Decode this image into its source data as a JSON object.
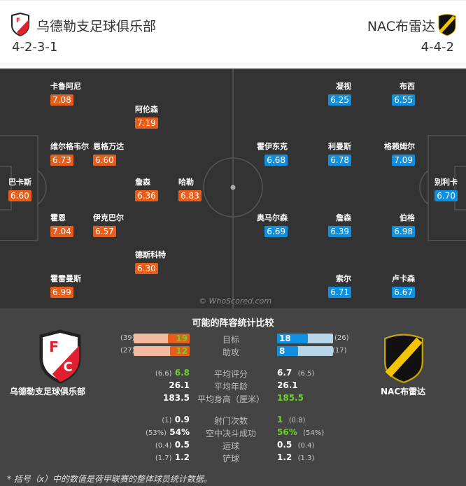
{
  "home": {
    "name": "乌德勒支足球俱乐部",
    "formation": "4-2-3-1",
    "color": "#e85d1a"
  },
  "away": {
    "name": "NAC布雷达",
    "formation": "4-4-2",
    "color": "#0f8fe0"
  },
  "home_players": [
    {
      "name": "卡鲁阿尼",
      "rating": "7.08"
    },
    {
      "name": "阿伦森",
      "rating": "7.19"
    },
    {
      "name": "维尔格韦尔",
      "rating": "6.73"
    },
    {
      "name": "恩格万达",
      "rating": "6.60"
    },
    {
      "name": "巴卡斯",
      "rating": "6.60"
    },
    {
      "name": "詹森",
      "rating": "6.36"
    },
    {
      "name": "哈勒",
      "rating": "6.83"
    },
    {
      "name": "霍恩",
      "rating": "7.04"
    },
    {
      "name": "伊克巴尔",
      "rating": "6.57"
    },
    {
      "name": "德斯科特",
      "rating": "6.30"
    },
    {
      "name": "霍雷曼斯",
      "rating": "6.99"
    }
  ],
  "away_players": [
    {
      "name": "凝视",
      "rating": "6.25"
    },
    {
      "name": "布西",
      "rating": "6.55"
    },
    {
      "name": "霍伊东克",
      "rating": "6.68"
    },
    {
      "name": "利曼斯",
      "rating": "6.78"
    },
    {
      "name": "格赖姆尔",
      "rating": "7.09"
    },
    {
      "name": "别利卡",
      "rating": "6.70"
    },
    {
      "name": "奥马尔森",
      "rating": "6.69"
    },
    {
      "name": "詹森",
      "rating": "6.39"
    },
    {
      "name": "伯格",
      "rating": "6.98"
    },
    {
      "name": "索尔",
      "rating": "6.71"
    },
    {
      "name": "卢卡森",
      "rating": "6.67"
    }
  ],
  "watermark": "© WhoScored.com",
  "stats": {
    "title": "可能的阵容统计比较",
    "goals": {
      "label": "目标",
      "home": 19,
      "home_league": "(39)",
      "away": 18,
      "away_league": "(26)"
    },
    "assists": {
      "label": "助攻",
      "home": 12,
      "home_league": "(27)",
      "away": 8,
      "away_league": "(17)"
    },
    "rows": [
      {
        "label": "平均评分",
        "home": "6.8",
        "home_league": "(6.6)",
        "away": "6.7",
        "away_league": "(6.5)",
        "better": "home"
      },
      {
        "label": "平均年龄",
        "home": "26.1",
        "home_league": "",
        "away": "26.1",
        "away_league": "",
        "better": ""
      },
      {
        "label": "平均身高（厘米）",
        "home": "183.5",
        "home_league": "",
        "away": "185.5",
        "away_league": "",
        "better": "away"
      },
      {
        "label": "射门次数",
        "home": "0.9",
        "home_league": "(1)",
        "away": "1",
        "away_league": "(0.8)",
        "better": "away"
      },
      {
        "label": "空中决斗成功",
        "home": "54%",
        "home_league": "(53%)",
        "away": "56%",
        "away_league": "(54%)",
        "better": "away"
      },
      {
        "label": "运球",
        "home": "0.5",
        "home_league": "(0.4)",
        "away": "0.5",
        "away_league": "(0.4)",
        "better": ""
      },
      {
        "label": "铲球",
        "home": "1.2",
        "home_league": "(1.7)",
        "away": "1.2",
        "away_league": "(1.3)",
        "better": ""
      }
    ],
    "footnote": "* 括号（x）中的数值是荷甲联赛的整体球员统计数据。"
  }
}
